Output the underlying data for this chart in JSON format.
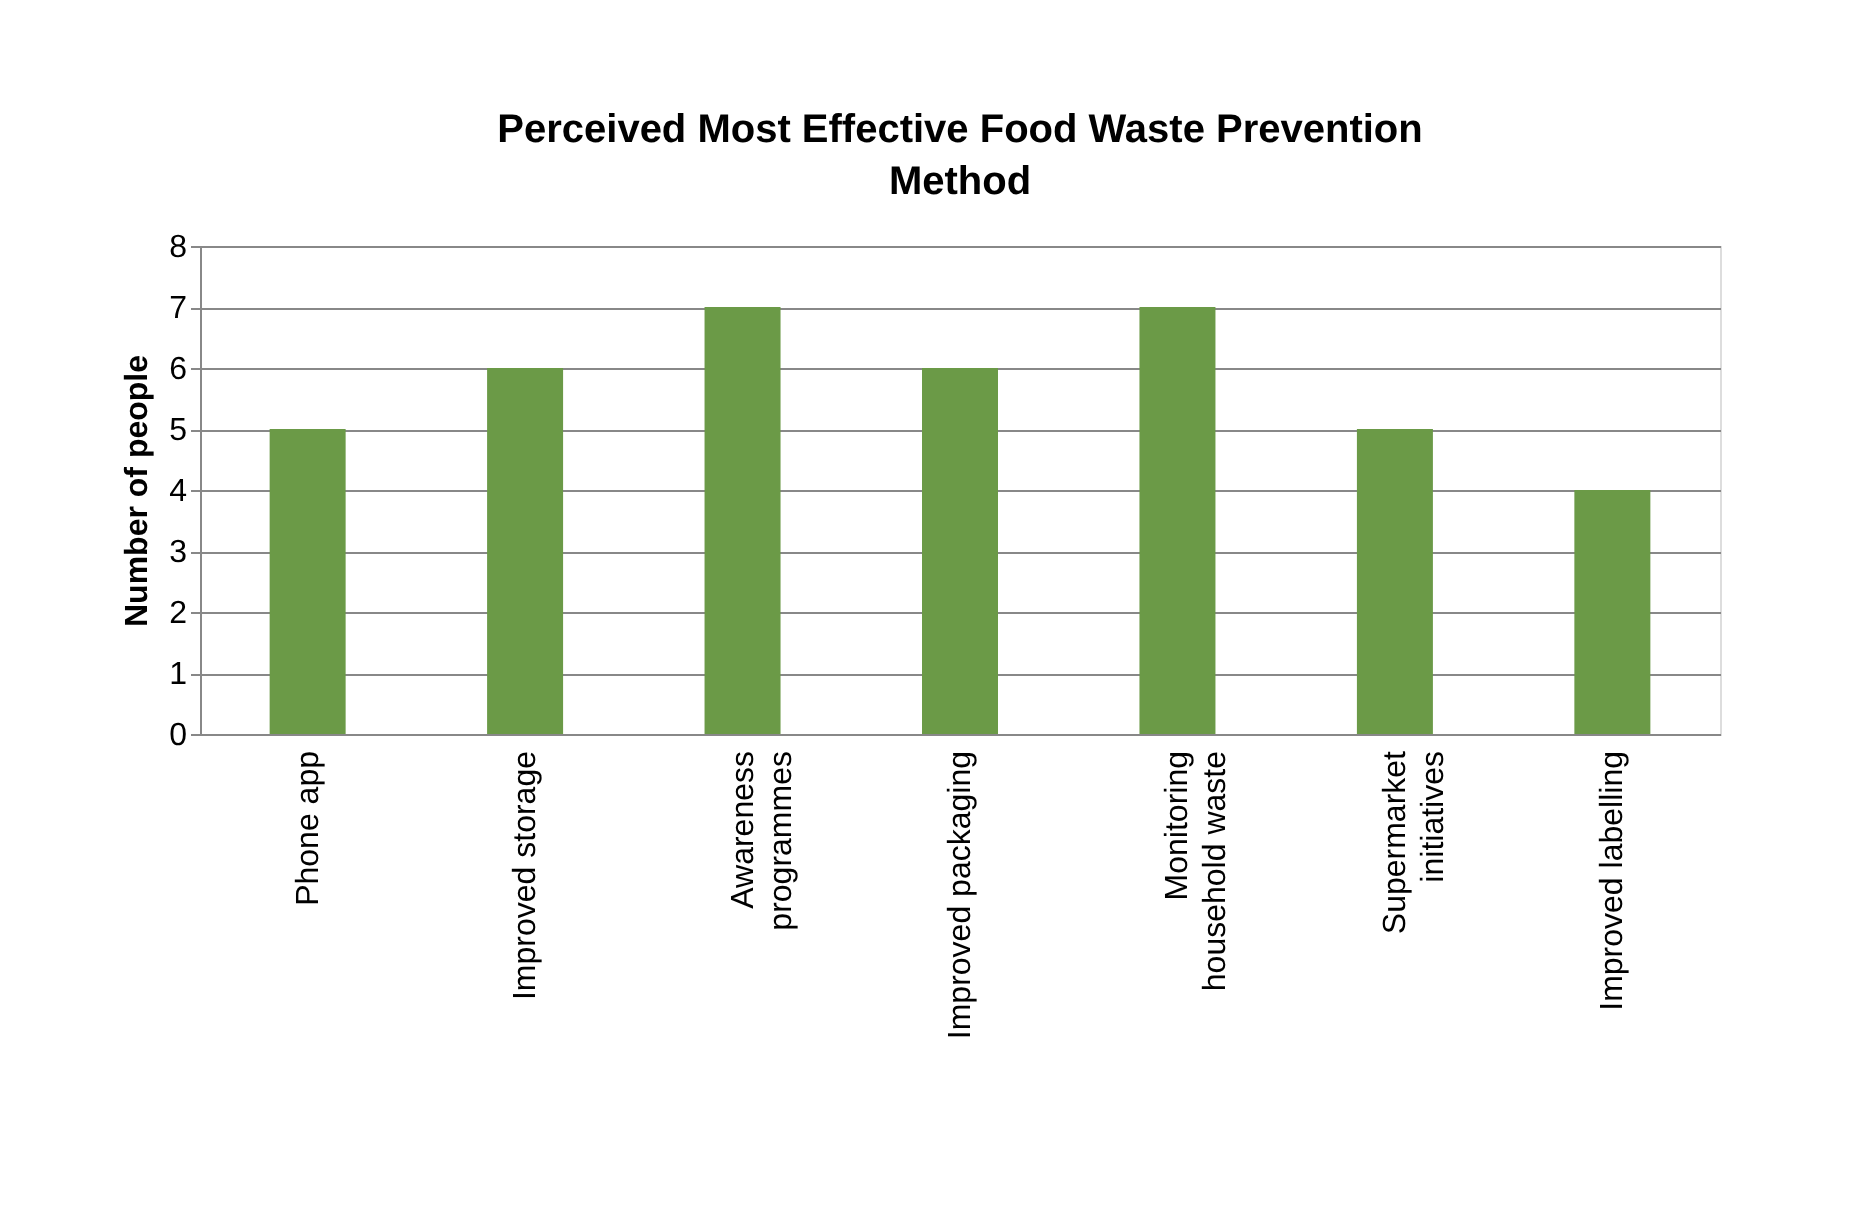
{
  "chart_data": {
    "type": "bar",
    "title": "Perceived Most Effective Food Waste Prevention Method",
    "ylabel": "Number of people",
    "categories": [
      "Phone app",
      "Improved storage",
      "Awareness programmes",
      "Improved packaging",
      "Monitoring household waste",
      "Supermarket initiatives",
      "Improved labelling"
    ],
    "values": [
      5,
      6,
      7,
      6,
      7,
      5,
      4
    ],
    "color": "#6b9a47",
    "ylim": [
      0,
      8
    ],
    "yticks": [
      0,
      1,
      2,
      3,
      4,
      5,
      6,
      7,
      8
    ],
    "grid": "y"
  }
}
